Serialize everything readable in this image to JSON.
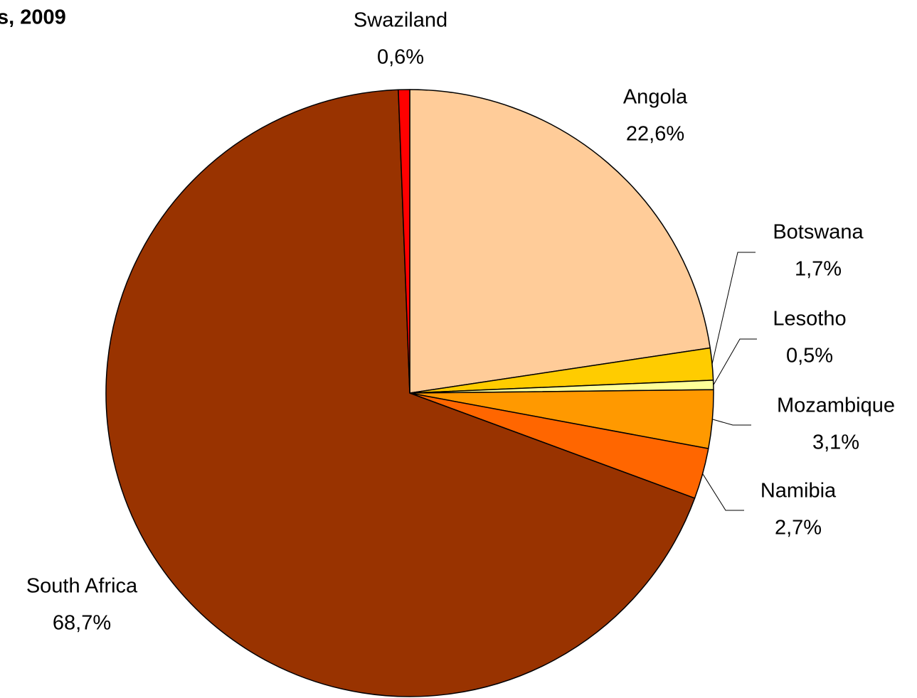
{
  "chart_data": {
    "type": "pie",
    "title": "s, 2009",
    "categories": [
      "Angola",
      "Botswana",
      "Lesotho",
      "Mozambique",
      "Namibia",
      "South Africa",
      "Swaziland"
    ],
    "values": [
      22.6,
      1.7,
      0.5,
      3.1,
      2.7,
      68.7,
      0.6
    ],
    "value_labels": [
      "22,6%",
      "1,7%",
      "0,5%",
      "3,1%",
      "2,7%",
      "68,7%",
      "0,6%"
    ],
    "colors": [
      "#ffcc99",
      "#ffcc00",
      "#ffff99",
      "#ff9900",
      "#ff6600",
      "#993300",
      "#ff0000"
    ]
  }
}
